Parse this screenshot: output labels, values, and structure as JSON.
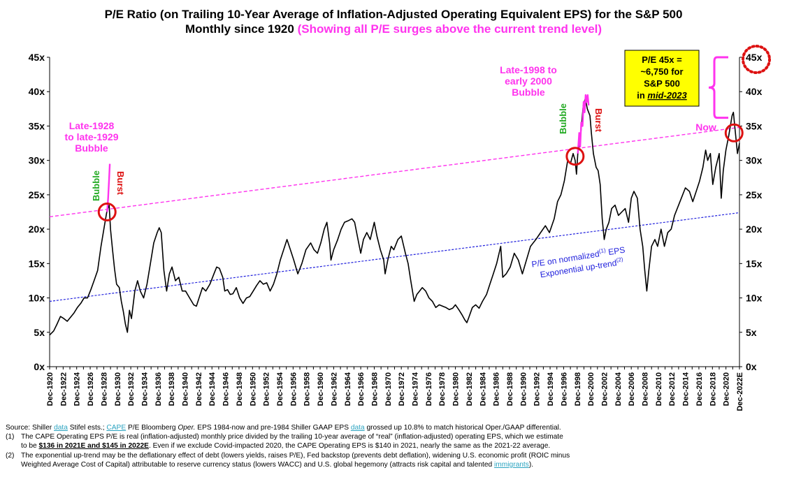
{
  "title": {
    "line1": "P/E Ratio (on Trailing 10-Year Average of Inflation-Adjusted Operating Equivalent EPS) for the S&P 500",
    "line2_black": "Monthly since 1920",
    "line2_pink": "(Showing all P/E surges above the current trend level)"
  },
  "colors": {
    "line": "#000000",
    "pink": "#ff33ee",
    "blue": "#2222dd",
    "green": "#22aa22",
    "red": "#dd1111",
    "callout_bg": "#ffff00",
    "link": "#2aa3c0"
  },
  "chart_data": {
    "type": "line",
    "ylim": [
      0,
      45
    ],
    "y_ticks": [
      "0x",
      "5x",
      "10x",
      "15x",
      "20x",
      "25x",
      "30x",
      "35x",
      "40x",
      "45x"
    ],
    "x_tick_labels": [
      "Dec-1920",
      "Dec-1922",
      "Dec-1924",
      "Dec-1926",
      "Dec-1928",
      "Dec-1930",
      "Dec-1932",
      "Dec-1934",
      "Dec-1936",
      "Dec-1938",
      "Dec-1940",
      "Dec-1942",
      "Dec-1944",
      "Dec-1946",
      "Dec-1948",
      "Dec-1950",
      "Dec-1952",
      "Dec-1954",
      "Dec-1956",
      "Dec-1958",
      "Dec-1960",
      "Dec-1962",
      "Dec-1964",
      "Dec-1966",
      "Dec-1968",
      "Dec-1970",
      "Dec-1972",
      "Dec-1974",
      "Dec-1976",
      "Dec-1978",
      "Dec-1980",
      "Dec-1982",
      "Dec-1984",
      "Dec-1986",
      "Dec-1988",
      "Dec-1990",
      "Dec-1992",
      "Dec-1994",
      "Dec-1996",
      "Dec-1998",
      "Dec-2000",
      "Dec-2002",
      "Dec-2004",
      "Dec-2006",
      "Dec-2008",
      "Dec-2010",
      "Dec-2012",
      "Dec-2014",
      "Dec-2016",
      "Dec-2018",
      "Dec-2020",
      "Dec-2022E"
    ],
    "x_range": [
      1920.9,
      2022.9
    ],
    "series": [
      {
        "style": "solid-black",
        "points": [
          [
            1920.9,
            4.6
          ],
          [
            1921.5,
            5.2
          ],
          [
            1922.0,
            6.2
          ],
          [
            1922.5,
            7.3
          ],
          [
            1923.0,
            7.0
          ],
          [
            1923.5,
            6.6
          ],
          [
            1924.0,
            7.2
          ],
          [
            1924.5,
            7.8
          ],
          [
            1925.0,
            8.6
          ],
          [
            1925.5,
            9.2
          ],
          [
            1926.0,
            10.0
          ],
          [
            1926.5,
            10.0
          ],
          [
            1927.0,
            11.2
          ],
          [
            1927.5,
            12.6
          ],
          [
            1928.0,
            14.0
          ],
          [
            1928.5,
            17.5
          ],
          [
            1929.0,
            20.5
          ],
          [
            1929.4,
            22.8
          ],
          [
            1929.7,
            23.5
          ],
          [
            1929.9,
            20.0
          ],
          [
            1930.2,
            17.0
          ],
          [
            1930.5,
            14.2
          ],
          [
            1930.8,
            12.0
          ],
          [
            1931.2,
            11.5
          ],
          [
            1931.5,
            9.5
          ],
          [
            1931.8,
            8.0
          ],
          [
            1932.1,
            6.2
          ],
          [
            1932.4,
            5.0
          ],
          [
            1932.7,
            8.2
          ],
          [
            1933.0,
            7.0
          ],
          [
            1933.5,
            11.0
          ],
          [
            1933.9,
            12.5
          ],
          [
            1934.3,
            11.0
          ],
          [
            1934.8,
            10.0
          ],
          [
            1935.3,
            12.0
          ],
          [
            1935.8,
            15.0
          ],
          [
            1936.3,
            18.0
          ],
          [
            1936.8,
            19.5
          ],
          [
            1937.1,
            20.2
          ],
          [
            1937.4,
            19.5
          ],
          [
            1937.8,
            14.0
          ],
          [
            1938.2,
            11.0
          ],
          [
            1938.6,
            13.5
          ],
          [
            1939.0,
            14.5
          ],
          [
            1939.5,
            12.5
          ],
          [
            1940.0,
            13.0
          ],
          [
            1940.5,
            11.0
          ],
          [
            1941.0,
            11.0
          ],
          [
            1941.6,
            10.0
          ],
          [
            1942.2,
            9.0
          ],
          [
            1942.6,
            8.8
          ],
          [
            1943.0,
            10.0
          ],
          [
            1943.5,
            11.5
          ],
          [
            1944.0,
            11.0
          ],
          [
            1944.6,
            12.0
          ],
          [
            1945.2,
            13.5
          ],
          [
            1945.6,
            14.5
          ],
          [
            1946.0,
            14.3
          ],
          [
            1946.5,
            13.0
          ],
          [
            1946.8,
            11.0
          ],
          [
            1947.2,
            11.2
          ],
          [
            1947.6,
            10.5
          ],
          [
            1948.0,
            10.6
          ],
          [
            1948.5,
            11.5
          ],
          [
            1949.0,
            10.0
          ],
          [
            1949.5,
            9.2
          ],
          [
            1950.0,
            10.0
          ],
          [
            1950.5,
            10.2
          ],
          [
            1951.0,
            11.0
          ],
          [
            1951.5,
            11.8
          ],
          [
            1952.0,
            12.5
          ],
          [
            1952.5,
            12.0
          ],
          [
            1953.0,
            12.2
          ],
          [
            1953.5,
            11.0
          ],
          [
            1954.0,
            12.0
          ],
          [
            1954.5,
            13.5
          ],
          [
            1955.0,
            15.5
          ],
          [
            1955.5,
            17.0
          ],
          [
            1956.0,
            18.5
          ],
          [
            1956.5,
            17.0
          ],
          [
            1957.0,
            15.5
          ],
          [
            1957.6,
            13.5
          ],
          [
            1958.2,
            15.0
          ],
          [
            1958.8,
            17.0
          ],
          [
            1959.5,
            18.0
          ],
          [
            1960.0,
            17.0
          ],
          [
            1960.5,
            16.5
          ],
          [
            1961.0,
            18.0
          ],
          [
            1961.5,
            20.0
          ],
          [
            1961.9,
            21.0
          ],
          [
            1962.3,
            18.0
          ],
          [
            1962.5,
            15.5
          ],
          [
            1962.9,
            17.0
          ],
          [
            1963.5,
            18.5
          ],
          [
            1964.0,
            20.0
          ],
          [
            1964.5,
            21.0
          ],
          [
            1965.0,
            21.2
          ],
          [
            1965.6,
            21.5
          ],
          [
            1966.0,
            21.0
          ],
          [
            1966.5,
            18.5
          ],
          [
            1966.9,
            16.5
          ],
          [
            1967.3,
            18.5
          ],
          [
            1967.8,
            19.5
          ],
          [
            1968.3,
            18.5
          ],
          [
            1968.9,
            21.0
          ],
          [
            1969.3,
            19.0
          ],
          [
            1969.8,
            17.0
          ],
          [
            1970.3,
            15.5
          ],
          [
            1970.5,
            13.5
          ],
          [
            1970.9,
            15.5
          ],
          [
            1971.4,
            17.5
          ],
          [
            1971.8,
            17.0
          ],
          [
            1972.4,
            18.5
          ],
          [
            1972.9,
            19.0
          ],
          [
            1973.5,
            16.5
          ],
          [
            1973.9,
            15.0
          ],
          [
            1974.3,
            12.5
          ],
          [
            1974.8,
            9.5
          ],
          [
            1975.2,
            10.5
          ],
          [
            1975.6,
            11.0
          ],
          [
            1976.0,
            11.5
          ],
          [
            1976.5,
            11.0
          ],
          [
            1977.0,
            10.0
          ],
          [
            1977.5,
            9.5
          ],
          [
            1978.0,
            8.6
          ],
          [
            1978.5,
            9.0
          ],
          [
            1979.0,
            8.8
          ],
          [
            1979.5,
            8.6
          ],
          [
            1980.0,
            8.3
          ],
          [
            1980.5,
            8.5
          ],
          [
            1980.9,
            9.0
          ],
          [
            1981.4,
            8.3
          ],
          [
            1981.9,
            7.5
          ],
          [
            1982.3,
            6.8
          ],
          [
            1982.6,
            6.4
          ],
          [
            1982.9,
            7.2
          ],
          [
            1983.4,
            8.6
          ],
          [
            1983.9,
            9.0
          ],
          [
            1984.4,
            8.5
          ],
          [
            1984.9,
            9.5
          ],
          [
            1985.5,
            10.5
          ],
          [
            1986.0,
            12.0
          ],
          [
            1986.5,
            13.5
          ],
          [
            1987.0,
            15.0
          ],
          [
            1987.6,
            17.5
          ],
          [
            1987.9,
            13.0
          ],
          [
            1988.4,
            13.5
          ],
          [
            1989.0,
            14.5
          ],
          [
            1989.6,
            16.5
          ],
          [
            1990.2,
            15.5
          ],
          [
            1990.8,
            13.5
          ],
          [
            1991.4,
            15.5
          ],
          [
            1992.0,
            17.5
          ],
          [
            1992.8,
            18.5
          ],
          [
            1993.5,
            19.5
          ],
          [
            1994.2,
            20.5
          ],
          [
            1994.8,
            19.5
          ],
          [
            1995.5,
            21.5
          ],
          [
            1996.0,
            24.0
          ],
          [
            1996.5,
            25.0
          ],
          [
            1997.0,
            27.0
          ],
          [
            1997.5,
            30.0
          ],
          [
            1997.9,
            29.5
          ],
          [
            1998.3,
            31.0
          ],
          [
            1998.6,
            30.0
          ],
          [
            1998.8,
            28.0
          ],
          [
            1999.0,
            31.0
          ],
          [
            1999.4,
            33.5
          ],
          [
            1999.8,
            38.0
          ],
          [
            2000.1,
            39.0
          ],
          [
            2000.4,
            37.5
          ],
          [
            2000.8,
            36.5
          ],
          [
            2001.0,
            34.0
          ],
          [
            2001.3,
            31.0
          ],
          [
            2001.7,
            29.0
          ],
          [
            2002.0,
            28.5
          ],
          [
            2002.3,
            26.5
          ],
          [
            2002.6,
            21.5
          ],
          [
            2002.9,
            18.5
          ],
          [
            2003.2,
            20.0
          ],
          [
            2003.6,
            21.0
          ],
          [
            2004.0,
            23.0
          ],
          [
            2004.5,
            23.5
          ],
          [
            2005.0,
            22.0
          ],
          [
            2005.5,
            22.5
          ],
          [
            2006.0,
            23.0
          ],
          [
            2006.5,
            21.0
          ],
          [
            2006.9,
            24.5
          ],
          [
            2007.3,
            25.5
          ],
          [
            2007.8,
            24.5
          ],
          [
            2008.2,
            20.0
          ],
          [
            2008.6,
            17.5
          ],
          [
            2008.9,
            14.0
          ],
          [
            2009.2,
            11.0
          ],
          [
            2009.5,
            14.0
          ],
          [
            2009.9,
            17.5
          ],
          [
            2010.4,
            18.5
          ],
          [
            2010.8,
            17.5
          ],
          [
            2011.3,
            20.0
          ],
          [
            2011.8,
            17.5
          ],
          [
            2012.3,
            19.5
          ],
          [
            2012.8,
            20.0
          ],
          [
            2013.3,
            22.0
          ],
          [
            2013.9,
            23.5
          ],
          [
            2014.5,
            25.0
          ],
          [
            2014.9,
            26.0
          ],
          [
            2015.5,
            25.5
          ],
          [
            2016.0,
            24.0
          ],
          [
            2016.5,
            25.5
          ],
          [
            2017.0,
            27.0
          ],
          [
            2017.5,
            29.0
          ],
          [
            2017.9,
            31.5
          ],
          [
            2018.2,
            30.0
          ],
          [
            2018.6,
            31.0
          ],
          [
            2018.95,
            26.5
          ],
          [
            2019.4,
            29.0
          ],
          [
            2019.9,
            31.0
          ],
          [
            2020.2,
            24.5
          ],
          [
            2020.5,
            28.5
          ],
          [
            2020.9,
            31.5
          ],
          [
            2021.3,
            33.5
          ],
          [
            2021.8,
            36.5
          ],
          [
            2022.0,
            37.0
          ],
          [
            2022.3,
            34.0
          ],
          [
            2022.6,
            31.0
          ],
          [
            2022.9,
            32.5
          ]
        ]
      },
      {
        "style": "solid-pink",
        "points": [
          [
            1929.4,
            22.5
          ],
          [
            1929.55,
            24.5
          ],
          [
            1929.7,
            27.5
          ],
          [
            1929.8,
            29.5
          ]
        ]
      },
      {
        "style": "solid-pink",
        "points": [
          [
            1999.0,
            31.0
          ],
          [
            1999.2,
            34.0
          ],
          [
            1999.35,
            32.0
          ],
          [
            1999.5,
            35.5
          ],
          [
            1999.7,
            35.0
          ],
          [
            1999.85,
            38.5
          ],
          [
            2000.0,
            37.0
          ],
          [
            2000.15,
            39.5
          ],
          [
            2000.3,
            38.5
          ],
          [
            2000.45,
            39.5
          ],
          [
            2000.6,
            38.0
          ]
        ]
      },
      {
        "style": "dashed-pink",
        "points": [
          [
            1920.9,
            21.8
          ],
          [
            2022.9,
            34.8
          ]
        ]
      },
      {
        "style": "dashed-blue",
        "points": [
          [
            1920.9,
            9.5
          ],
          [
            2022.9,
            22.4
          ]
        ]
      }
    ],
    "annotations": {
      "bubble_1928": [
        "Late-1928",
        "to late-1929",
        "Bubble"
      ],
      "bubble_1998": [
        "Late-1998 to",
        "early 2000",
        "Bubble"
      ],
      "bubble_label": "Bubble",
      "burst_label": "Burst",
      "now_label": "Now",
      "trend_label": [
        "P/E on normalized",
        "(1)",
        " EPS",
        "Exponential up-trend",
        "(2)"
      ],
      "callout": [
        "P/E 45x =",
        "~6,750 for",
        "S&P 500",
        "in ",
        "mid-2023"
      ],
      "target_label": "45x"
    }
  },
  "sources": {
    "source": [
      "Source: Shiller ",
      "data",
      " Stifel ests.; ",
      "CAPE",
      " P/E Bloomberg ",
      "Oper.",
      " EPS 1984-now and pre-1984 Shiller GAAP EPS ",
      "data",
      " grossed up 10.8% to match historical Oper./GAAP differential."
    ],
    "note1_num": "(1)",
    "note1": [
      "The CAPE Operating EPS P/E  is real (inflation-adjusted) monthly price divided by the trailing 10-year average of “real”  (inflation-adjusted) operating EPS, which we estimate",
      "to be ",
      "$136 in 2021E and $145 in 2022E",
      ". Even if we exclude Covid-impacted 2020, the CAPE Operating EPS is $140 in 2021, nearly the same as the 2021-22 average."
    ],
    "note2_num": "(2)",
    "note2": [
      "The exponential up-trend may be the deflationary effect of debt (lowers yields, raises P/E), Fed backstop (prevents debt deflation), widening U.S. economic profit (ROIC minus",
      "Weighted Average Cost of Capital) attributable to reserve currency status (lowers WACC) and U.S. global hegemony (attracts risk capital and talented ",
      "immigrants",
      ")."
    ]
  }
}
